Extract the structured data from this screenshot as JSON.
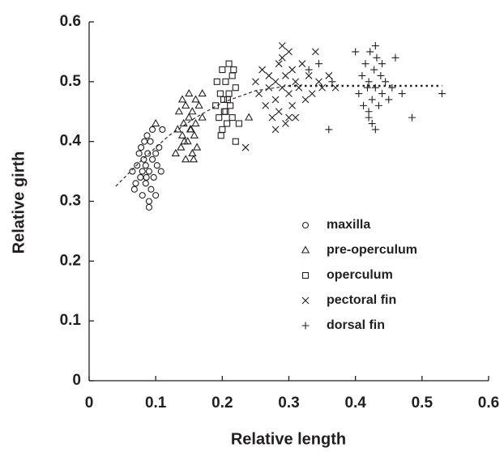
{
  "chart_data": {
    "type": "scatter",
    "xlabel": "Relative length",
    "ylabel": "Relative girth",
    "xlim": [
      0,
      0.6
    ],
    "ylim": [
      0,
      0.6
    ],
    "xticks": [
      0,
      0.1,
      0.2,
      0.3,
      0.4,
      0.5,
      0.6
    ],
    "yticks": [
      0,
      0.1,
      0.2,
      0.3,
      0.4,
      0.5,
      0.6
    ],
    "grid": false,
    "legend": "lower right",
    "series": [
      {
        "name": "maxilla",
        "marker": "circle",
        "color": "#231f20",
        "x": [
          0.07,
          0.072,
          0.075,
          0.077,
          0.078,
          0.08,
          0.08,
          0.082,
          0.083,
          0.085,
          0.085,
          0.087,
          0.088,
          0.09,
          0.09,
          0.092,
          0.093,
          0.095,
          0.095,
          0.097,
          0.1,
          0.1,
          0.102,
          0.105,
          0.108,
          0.11,
          0.065,
          0.068,
          0.09,
          0.086
        ],
        "values": [
          0.33,
          0.36,
          0.38,
          0.34,
          0.39,
          0.35,
          0.31,
          0.37,
          0.4,
          0.33,
          0.36,
          0.41,
          0.38,
          0.29,
          0.35,
          0.4,
          0.32,
          0.37,
          0.42,
          0.34,
          0.38,
          0.31,
          0.36,
          0.39,
          0.35,
          0.42,
          0.35,
          0.32,
          0.3,
          0.34
        ]
      },
      {
        "name": "pre-operculum",
        "marker": "triangle",
        "color": "#231f20",
        "x": [
          0.13,
          0.133,
          0.135,
          0.138,
          0.14,
          0.14,
          0.142,
          0.145,
          0.145,
          0.148,
          0.15,
          0.15,
          0.152,
          0.155,
          0.155,
          0.158,
          0.16,
          0.16,
          0.162,
          0.165,
          0.17,
          0.17,
          0.143,
          0.153,
          0.24,
          0.1,
          0.157
        ],
        "values": [
          0.38,
          0.42,
          0.45,
          0.39,
          0.47,
          0.41,
          0.43,
          0.37,
          0.46,
          0.4,
          0.44,
          0.48,
          0.42,
          0.38,
          0.45,
          0.41,
          0.47,
          0.43,
          0.39,
          0.46,
          0.44,
          0.48,
          0.4,
          0.42,
          0.44,
          0.43,
          0.37
        ]
      },
      {
        "name": "operculum",
        "marker": "square",
        "color": "#231f20",
        "x": [
          0.19,
          0.192,
          0.195,
          0.197,
          0.2,
          0.2,
          0.202,
          0.205,
          0.205,
          0.207,
          0.21,
          0.21,
          0.212,
          0.215,
          0.215,
          0.22,
          0.22,
          0.225,
          0.198,
          0.208,
          0.217,
          0.203
        ],
        "values": [
          0.46,
          0.5,
          0.44,
          0.48,
          0.42,
          0.52,
          0.47,
          0.45,
          0.5,
          0.43,
          0.53,
          0.48,
          0.46,
          0.44,
          0.51,
          0.4,
          0.49,
          0.43,
          0.41,
          0.47,
          0.52,
          0.45
        ]
      },
      {
        "name": "pectoral fin",
        "marker": "x",
        "color": "#231f20",
        "x": [
          0.235,
          0.25,
          0.255,
          0.26,
          0.265,
          0.27,
          0.27,
          0.275,
          0.28,
          0.28,
          0.285,
          0.285,
          0.29,
          0.29,
          0.295,
          0.295,
          0.3,
          0.3,
          0.305,
          0.305,
          0.31,
          0.31,
          0.315,
          0.32,
          0.325,
          0.33,
          0.335,
          0.34,
          0.345,
          0.35,
          0.36,
          0.37,
          0.28,
          0.3,
          0.29
        ],
        "values": [
          0.39,
          0.5,
          0.48,
          0.52,
          0.46,
          0.49,
          0.51,
          0.44,
          0.5,
          0.47,
          0.53,
          0.45,
          0.49,
          0.56,
          0.43,
          0.51,
          0.48,
          0.55,
          0.46,
          0.52,
          0.5,
          0.44,
          0.49,
          0.53,
          0.47,
          0.51,
          0.48,
          0.55,
          0.5,
          0.49,
          0.51,
          0.49,
          0.42,
          0.44,
          0.54
        ]
      },
      {
        "name": "dorsal fin",
        "marker": "plus",
        "color": "#231f20",
        "x": [
          0.33,
          0.345,
          0.36,
          0.365,
          0.4,
          0.405,
          0.41,
          0.412,
          0.415,
          0.418,
          0.42,
          0.42,
          0.422,
          0.425,
          0.428,
          0.43,
          0.43,
          0.432,
          0.435,
          0.438,
          0.44,
          0.44,
          0.445,
          0.45,
          0.455,
          0.46,
          0.47,
          0.485,
          0.53,
          0.42,
          0.425,
          0.43
        ],
        "values": [
          0.52,
          0.53,
          0.42,
          0.5,
          0.55,
          0.48,
          0.51,
          0.46,
          0.53,
          0.49,
          0.44,
          0.5,
          0.55,
          0.47,
          0.52,
          0.42,
          0.49,
          0.54,
          0.46,
          0.51,
          0.48,
          0.53,
          0.5,
          0.47,
          0.49,
          0.54,
          0.48,
          0.44,
          0.48,
          0.45,
          0.43,
          0.56
        ]
      }
    ],
    "trends": [
      {
        "style": "dashed",
        "x": [
          0.04,
          0.08,
          0.12,
          0.16,
          0.2,
          0.25,
          0.3
        ],
        "values": [
          0.325,
          0.37,
          0.41,
          0.44,
          0.465,
          0.485,
          0.493
        ]
      },
      {
        "style": "dotted",
        "x": [
          0.3,
          0.53
        ],
        "values": [
          0.493,
          0.493
        ]
      }
    ]
  }
}
